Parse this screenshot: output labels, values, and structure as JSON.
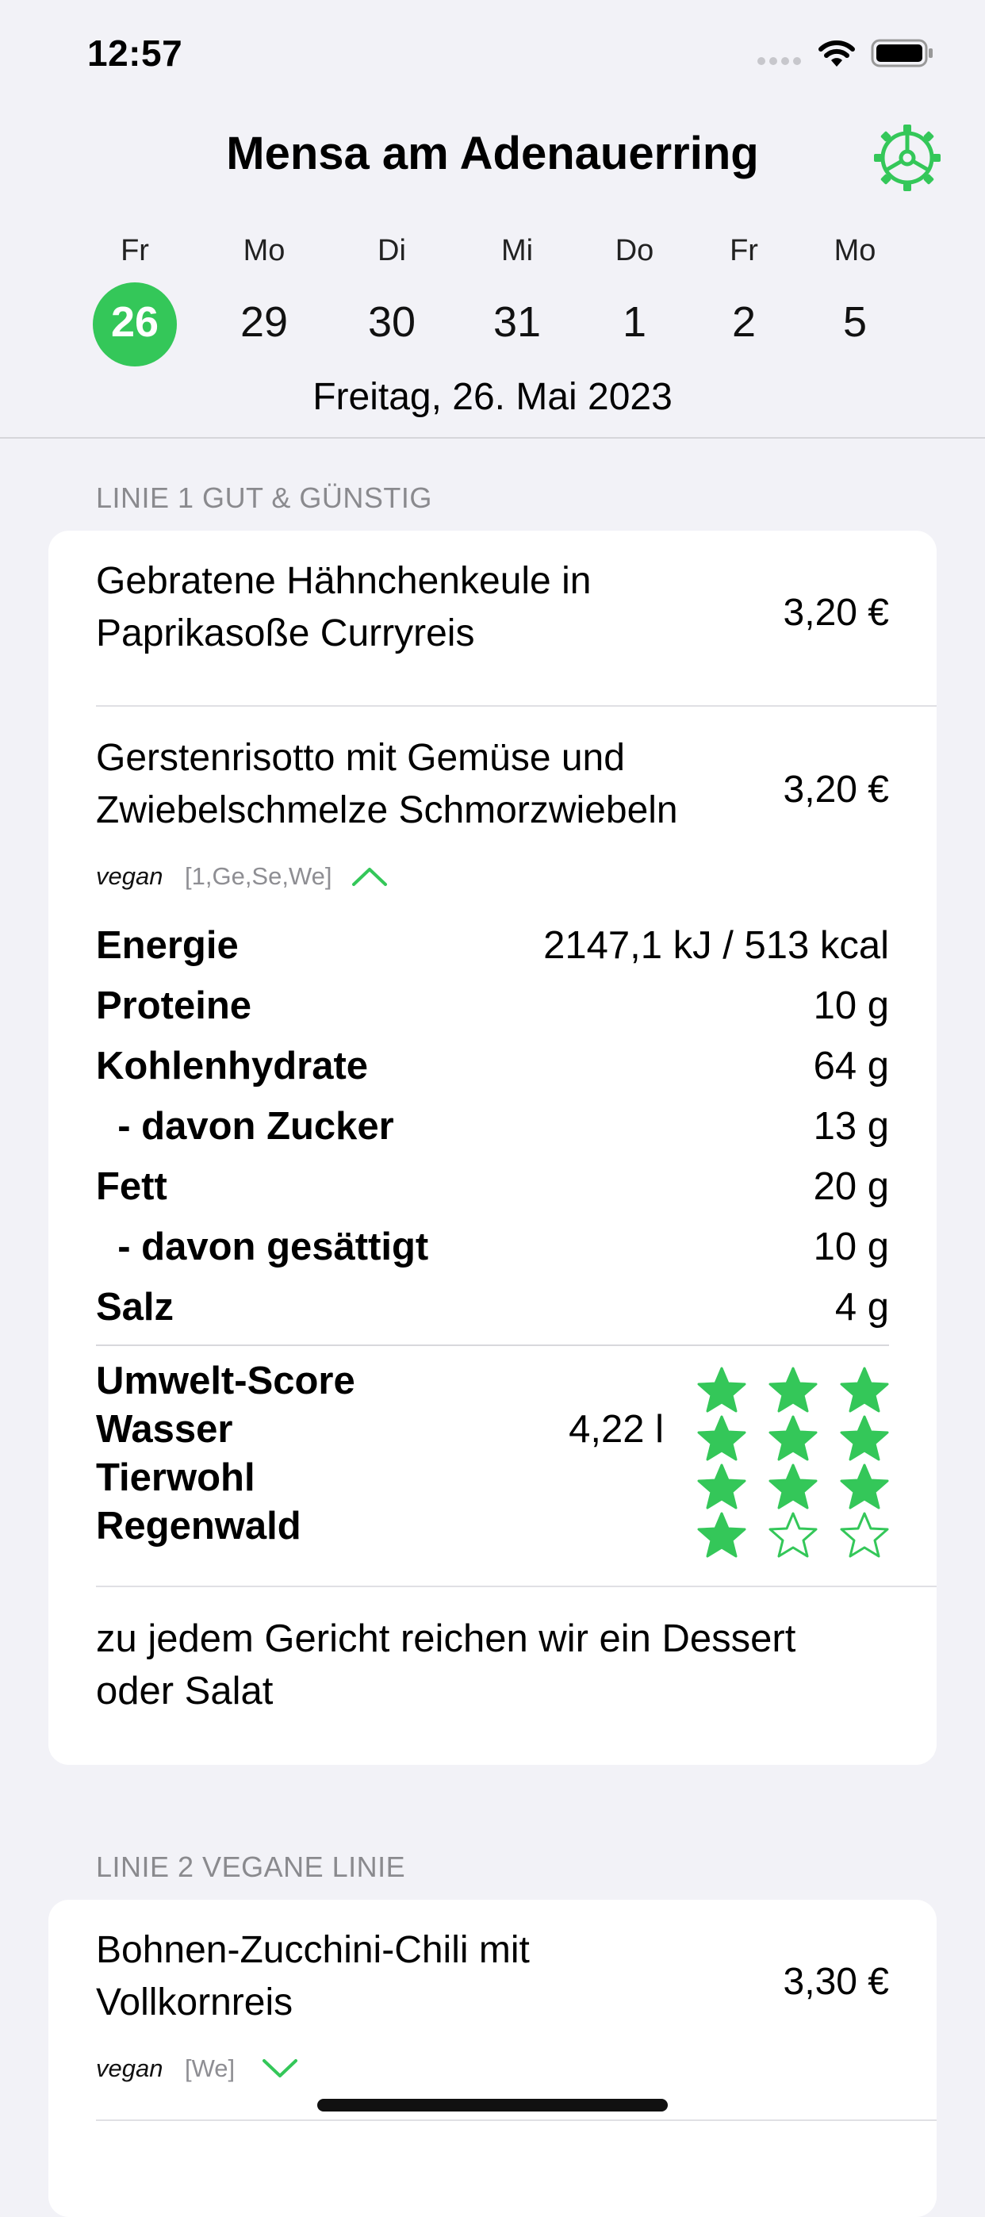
{
  "status_bar": {
    "time": "12:57"
  },
  "header": {
    "title": "Mensa am Adenauerring",
    "accent_color": "#34c759",
    "settings_icon": "gear-icon",
    "days": [
      {
        "name": "Fr",
        "num": "26",
        "selected": true
      },
      {
        "name": "Mo",
        "num": "29"
      },
      {
        "name": "Di",
        "num": "30"
      },
      {
        "name": "Mi",
        "num": "31"
      },
      {
        "name": "Do",
        "num": "1"
      },
      {
        "name": "Fr",
        "num": "2"
      },
      {
        "name": "Mo",
        "num": "5"
      }
    ],
    "date_label": "Freitag, 26. Mai 2023"
  },
  "lines": [
    {
      "title": "LINIE 1 GUT & GÜNSTIG",
      "dishes": [
        {
          "name_lines": [
            "Gebratene Hähnchenkeule in",
            "Paprikasoße Curryreis"
          ],
          "price": "3,20 €"
        },
        {
          "name_lines": [
            "Gerstenrisotto mit Gemüse und",
            "Zwiebelschmelze Schmorzwiebeln"
          ],
          "price": "3,20 €",
          "tag": "vegan",
          "allergens": "[1,Ge,Se,We]",
          "expanded": true,
          "nutrition": [
            {
              "label": "Energie",
              "value": "2147,1 kJ / 513 kcal"
            },
            {
              "label": "Proteine",
              "value": "10 g"
            },
            {
              "label": "Kohlenhydrate",
              "value": "64 g"
            },
            {
              "label": "  - davon Zucker",
              "value": "13 g"
            },
            {
              "label": "Fett",
              "value": "20 g"
            },
            {
              "label": "  - davon gesättigt",
              "value": "10 g"
            },
            {
              "label": "Salz",
              "value": "4 g"
            }
          ],
          "eco": [
            {
              "label": "Umwelt-Score",
              "value": "",
              "stars": 3
            },
            {
              "label": "Wasser",
              "value": "4,22 l",
              "stars": 3
            },
            {
              "label": "Tierwohl",
              "value": "",
              "stars": 3
            },
            {
              "label": "Regenwald",
              "value": "",
              "stars": 1
            }
          ],
          "eco_max_stars": 3
        }
      ],
      "note_lines": [
        "zu jedem Gericht reichen wir ein Dessert",
        "oder Salat"
      ]
    },
    {
      "title": "LINIE 2 VEGANE LINIE",
      "dishes": [
        {
          "name_lines": [
            "Bohnen-Zucchini-Chili mit",
            "Vollkornreis"
          ],
          "price": "3,30 €",
          "tag": "vegan",
          "allergens": "[We]",
          "expanded": false
        }
      ]
    }
  ]
}
